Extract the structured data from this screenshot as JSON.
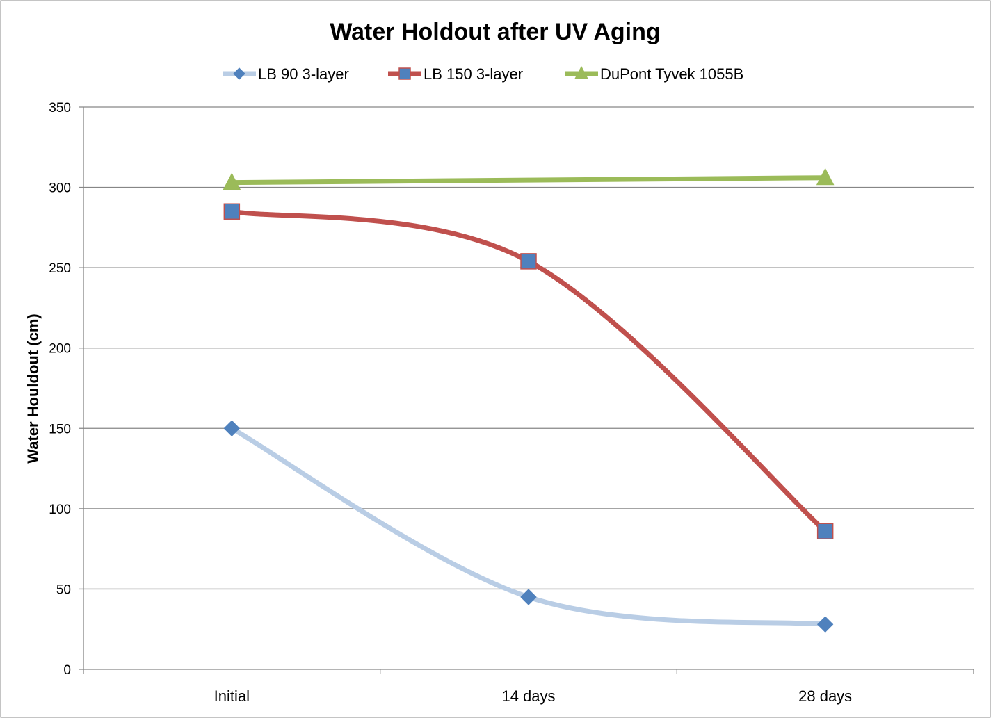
{
  "chart_data": {
    "type": "line",
    "title": "Water Holdout after UV Aging",
    "xlabel": "",
    "ylabel": "Water Houldout (cm)",
    "categories": [
      "Initial",
      "14 days",
      "28 days"
    ],
    "ylim": [
      0,
      350
    ],
    "yticks": [
      0,
      50,
      100,
      150,
      200,
      250,
      300,
      350
    ],
    "grid": true,
    "legend": "top",
    "smooth": true,
    "series": [
      {
        "name": "LB 90 3-layer",
        "values": [
          150,
          45,
          28
        ],
        "line_color": "#B9CDE5",
        "marker": "diamond",
        "marker_color": "#4F81BD",
        "marker_stroke": "#4F81BD"
      },
      {
        "name": "LB 150 3-layer",
        "values": [
          285,
          254,
          86
        ],
        "line_color": "#C0504D",
        "marker": "square",
        "marker_color": "#4F81BD",
        "marker_stroke": "#C0504D"
      },
      {
        "name": "DuPont Tyvek 1055B",
        "values": [
          303,
          null,
          306
        ],
        "line_color": "#9BBB59",
        "marker": "triangle",
        "marker_color": "#9BBB59",
        "marker_stroke": "#9BBB59"
      }
    ]
  }
}
